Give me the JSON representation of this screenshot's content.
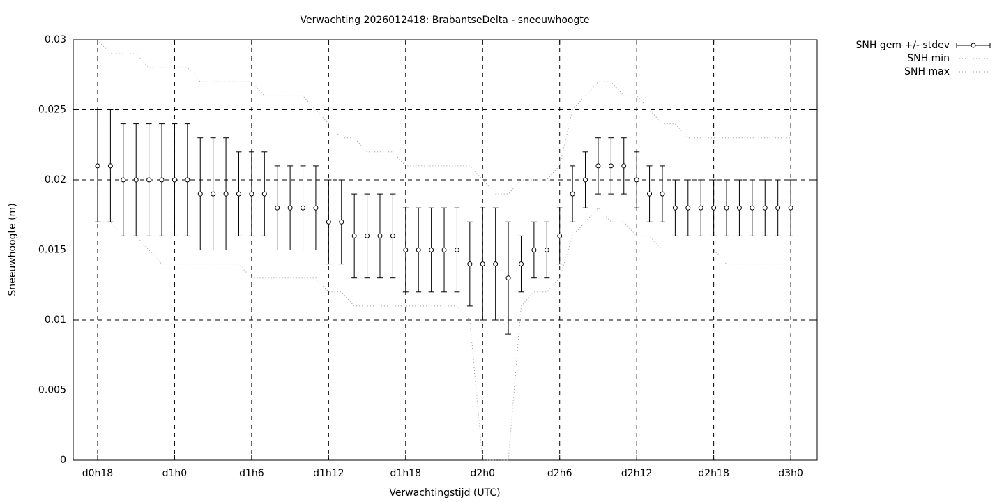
{
  "chart_data": {
    "type": "errorbar",
    "title": "Verwachting 2026012418: BrabantseDelta - sneeuwhoogte",
    "xlabel": "Verwachtingstijd (UTC)",
    "ylabel": "Sneeuwhoogte (m)",
    "x": [
      18,
      19,
      20,
      21,
      22,
      23,
      24,
      25,
      26,
      27,
      28,
      29,
      30,
      31,
      32,
      33,
      34,
      35,
      36,
      37,
      38,
      39,
      40,
      41,
      42,
      43,
      44,
      45,
      46,
      47,
      48,
      49,
      50,
      51,
      52,
      53,
      54,
      55,
      56,
      57,
      58,
      59,
      60,
      61,
      62,
      63,
      64,
      65,
      66,
      67,
      68,
      69,
      70,
      71,
      72
    ],
    "xlim": [
      16.1,
      74.06
    ],
    "xticks": [
      {
        "value": 18,
        "label": "d0h18"
      },
      {
        "value": 24,
        "label": "d1h0"
      },
      {
        "value": 30,
        "label": "d1h6"
      },
      {
        "value": 36,
        "label": "d1h12"
      },
      {
        "value": 42,
        "label": "d1h18"
      },
      {
        "value": 48,
        "label": "d2h0"
      },
      {
        "value": 54,
        "label": "d2h6"
      },
      {
        "value": 60,
        "label": "d2h12"
      },
      {
        "value": 66,
        "label": "d2h18"
      },
      {
        "value": 72,
        "label": "d3h0"
      }
    ],
    "ylim": [
      0,
      0.03
    ],
    "yticks": [
      0,
      0.005,
      0.01,
      0.015,
      0.02,
      0.025,
      0.03
    ],
    "grid": true,
    "legend": "outside-top-right",
    "series": [
      {
        "name": "SNH gem +/- stdev",
        "style": "errorbars",
        "color": "#000000",
        "values": [
          0.021,
          0.021,
          0.02,
          0.02,
          0.02,
          0.02,
          0.02,
          0.02,
          0.019,
          0.019,
          0.019,
          0.019,
          0.019,
          0.019,
          0.018,
          0.018,
          0.018,
          0.018,
          0.017,
          0.017,
          0.016,
          0.016,
          0.016,
          0.016,
          0.015,
          0.015,
          0.015,
          0.015,
          0.015,
          0.014,
          0.014,
          0.014,
          0.013,
          0.014,
          0.015,
          0.015,
          0.016,
          0.019,
          0.02,
          0.021,
          0.021,
          0.021,
          0.02,
          0.019,
          0.019,
          0.018,
          0.018,
          0.018,
          0.018,
          0.018,
          0.018,
          0.018,
          0.018,
          0.018,
          0.018
        ],
        "low": [
          0.017,
          0.017,
          0.016,
          0.016,
          0.016,
          0.016,
          0.016,
          0.016,
          0.015,
          0.015,
          0.015,
          0.016,
          0.016,
          0.016,
          0.015,
          0.015,
          0.015,
          0.015,
          0.014,
          0.014,
          0.013,
          0.013,
          0.013,
          0.013,
          0.012,
          0.012,
          0.012,
          0.012,
          0.012,
          0.011,
          0.01,
          0.01,
          0.009,
          0.012,
          0.013,
          0.013,
          0.014,
          0.017,
          0.018,
          0.019,
          0.019,
          0.019,
          0.018,
          0.017,
          0.017,
          0.016,
          0.016,
          0.016,
          0.016,
          0.016,
          0.016,
          0.016,
          0.016,
          0.016,
          0.016
        ],
        "high": [
          0.025,
          0.025,
          0.024,
          0.024,
          0.024,
          0.024,
          0.024,
          0.024,
          0.023,
          0.023,
          0.023,
          0.022,
          0.022,
          0.022,
          0.021,
          0.021,
          0.021,
          0.021,
          0.02,
          0.02,
          0.019,
          0.019,
          0.019,
          0.019,
          0.018,
          0.018,
          0.018,
          0.018,
          0.018,
          0.017,
          0.018,
          0.018,
          0.017,
          0.016,
          0.017,
          0.017,
          0.018,
          0.021,
          0.022,
          0.023,
          0.023,
          0.023,
          0.022,
          0.021,
          0.021,
          0.02,
          0.02,
          0.02,
          0.02,
          0.02,
          0.02,
          0.02,
          0.02,
          0.02,
          0.02
        ]
      },
      {
        "name": "SNH min",
        "style": "dotted",
        "color": "#999999",
        "values": [
          0.017,
          0.017,
          0.016,
          0.016,
          0.015,
          0.014,
          0.014,
          0.014,
          0.014,
          0.014,
          0.014,
          0.014,
          0.013,
          0.013,
          0.013,
          0.013,
          0.013,
          0.013,
          0.012,
          0.012,
          0.011,
          0.011,
          0.011,
          0.011,
          0.011,
          0.011,
          0.011,
          0.011,
          0.011,
          0.01,
          0,
          0,
          0,
          0.011,
          0.012,
          0.012,
          0.013,
          0.016,
          0.017,
          0.018,
          0.017,
          0.017,
          0.016,
          0.016,
          0.015,
          0.015,
          0.015,
          0.015,
          0.015,
          0.014,
          0.014,
          0.014,
          0.014,
          0.014,
          0.014
        ]
      },
      {
        "name": "SNH max",
        "style": "dotted",
        "color": "#999999",
        "values": [
          0.03,
          0.029,
          0.029,
          0.029,
          0.028,
          0.028,
          0.028,
          0.028,
          0.027,
          0.027,
          0.027,
          0.027,
          0.027,
          0.026,
          0.026,
          0.026,
          0.026,
          0.025,
          0.024,
          0.023,
          0.023,
          0.022,
          0.022,
          0.022,
          0.021,
          0.021,
          0.021,
          0.021,
          0.021,
          0.021,
          0.02,
          0.019,
          0.019,
          0.02,
          0.02,
          0.02,
          0.021,
          0.025,
          0.026,
          0.027,
          0.027,
          0.026,
          0.026,
          0.025,
          0.024,
          0.024,
          0.023,
          0.023,
          0.023,
          0.023,
          0.023,
          0.023,
          0.023,
          0.023,
          0.023
        ]
      }
    ]
  }
}
